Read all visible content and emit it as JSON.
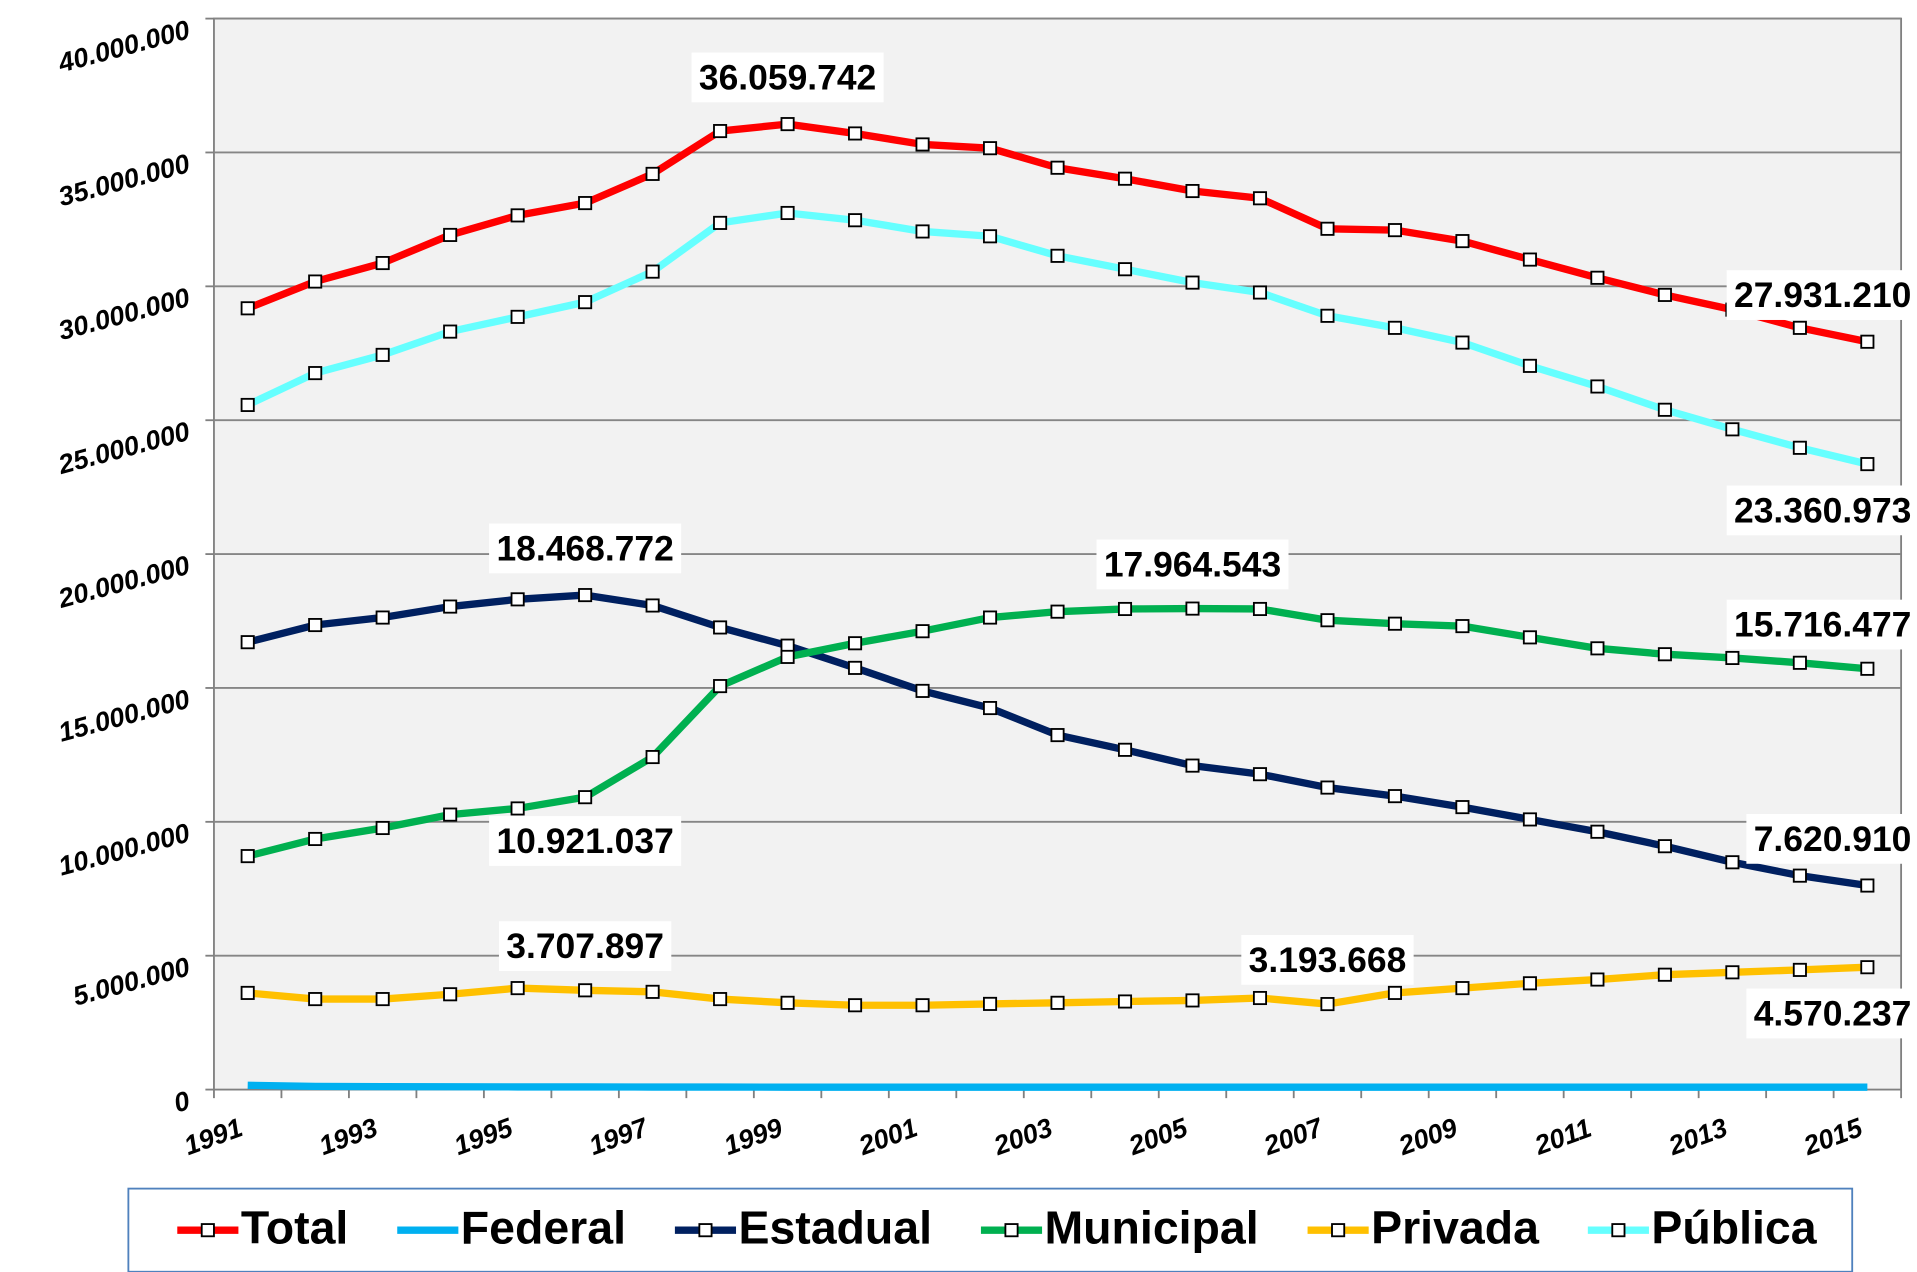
{
  "chart_data": {
    "type": "line",
    "categories": [
      "1991",
      null,
      "1993",
      null,
      "1995",
      null,
      "1997",
      null,
      "1999",
      null,
      "2001",
      null,
      "2003",
      null,
      "2005",
      null,
      "2007",
      null,
      "2009",
      null,
      "2011",
      null,
      "2013",
      null,
      "2015"
    ],
    "ylim": [
      0,
      40000000
    ],
    "yticks": [
      0,
      {
        "value": 5000000,
        "label": "5.000.000"
      },
      {
        "value": 10000000,
        "label": "10.000.000"
      },
      {
        "value": 15000000,
        "label": "15.000.000"
      },
      {
        "value": 20000000,
        "label": "20.000.000"
      },
      {
        "value": 25000000,
        "label": "25.000.000"
      },
      {
        "value": 30000000,
        "label": "30.000.000"
      },
      {
        "value": 35000000,
        "label": "35.000.000"
      },
      {
        "value": 40000000,
        "label": "40.000.000"
      }
    ],
    "grid": true,
    "legend": "bottom",
    "series": [
      {
        "name": "Total",
        "color": "#ff0000",
        "markers": true,
        "values": [
          29180000,
          30180000,
          30870000,
          31920000,
          32650000,
          33110000,
          34200000,
          35800000,
          36059742,
          35710000,
          35300000,
          35160000,
          34430000,
          34020000,
          33560000,
          33290000,
          32150000,
          32100000,
          31690000,
          31000000,
          30320000,
          29680000,
          29130000,
          28450000,
          27931210
        ],
        "value_labels": [
          null,
          null,
          null,
          null,
          null,
          null,
          null,
          null,
          "36.059.742",
          null,
          null,
          null,
          null,
          null,
          null,
          null,
          null,
          null,
          null,
          null,
          null,
          null,
          null,
          null,
          "27.931.210"
        ]
      },
      {
        "name": "Federal",
        "color": "#00b0f0",
        "markers": false,
        "values": [
          160000,
          120000,
          110000,
          105000,
          100000,
          100000,
          95000,
          95000,
          90000,
          90000,
          90000,
          90000,
          90000,
          90000,
          90000,
          90000,
          90000,
          90000,
          90000,
          90000,
          90000,
          90000,
          90000,
          90000,
          90000
        ]
      },
      {
        "name": "Estadual",
        "color": "#002060",
        "markers": true,
        "values": [
          16710000,
          17350000,
          17630000,
          18040000,
          18310000,
          18468772,
          18080000,
          17260000,
          16580000,
          15750000,
          14890000,
          14250000,
          13240000,
          12690000,
          12100000,
          11780000,
          11280000,
          10960000,
          10550000,
          10090000,
          9630000,
          9090000,
          8490000,
          7990000,
          7620910
        ],
        "value_labels": [
          null,
          null,
          null,
          null,
          null,
          "18.468.772",
          null,
          null,
          null,
          null,
          null,
          null,
          null,
          null,
          null,
          null,
          null,
          null,
          null,
          null,
          null,
          null,
          null,
          null,
          "7.620.910"
        ]
      },
      {
        "name": "Municipal",
        "color": "#00b050",
        "markers": true,
        "values": [
          8720000,
          9360000,
          9770000,
          10270000,
          10500000,
          10921037,
          12420000,
          15070000,
          16160000,
          16670000,
          17120000,
          17630000,
          17850000,
          17950000,
          17964543,
          17950000,
          17530000,
          17400000,
          17310000,
          16890000,
          16480000,
          16260000,
          16120000,
          15940000,
          15716477
        ],
        "value_labels": [
          null,
          null,
          null,
          null,
          null,
          "10.921.037",
          null,
          null,
          null,
          null,
          null,
          null,
          null,
          null,
          "17.964.543",
          null,
          null,
          null,
          null,
          null,
          null,
          null,
          null,
          null,
          "15.716.477"
        ]
      },
      {
        "name": "Privada",
        "color": "#ffc000",
        "markers": true,
        "values": [
          3610000,
          3380000,
          3380000,
          3560000,
          3790000,
          3707897,
          3650000,
          3380000,
          3240000,
          3150000,
          3150000,
          3200000,
          3240000,
          3290000,
          3330000,
          3420000,
          3193668,
          3610000,
          3790000,
          3970000,
          4110000,
          4290000,
          4380000,
          4470000,
          4570237
        ],
        "value_labels": [
          null,
          null,
          null,
          null,
          null,
          "3.707.897",
          null,
          null,
          null,
          null,
          null,
          null,
          null,
          null,
          null,
          null,
          "3.193.668",
          null,
          null,
          null,
          null,
          null,
          null,
          null,
          "4.570.237"
        ]
      },
      {
        "name": "Pública",
        "color": "#66ffff",
        "markers": true,
        "values": [
          25570000,
          26760000,
          27440000,
          28310000,
          28860000,
          29410000,
          30550000,
          32370000,
          32740000,
          32470000,
          32050000,
          31870000,
          31140000,
          30640000,
          30140000,
          29770000,
          28900000,
          28450000,
          27900000,
          27030000,
          26260000,
          25390000,
          24660000,
          23970000,
          23360973
        ],
        "value_labels": [
          null,
          null,
          null,
          null,
          null,
          null,
          null,
          null,
          null,
          null,
          null,
          null,
          null,
          null,
          null,
          null,
          null,
          null,
          null,
          null,
          null,
          null,
          null,
          null,
          "23.360.973"
        ]
      }
    ]
  }
}
